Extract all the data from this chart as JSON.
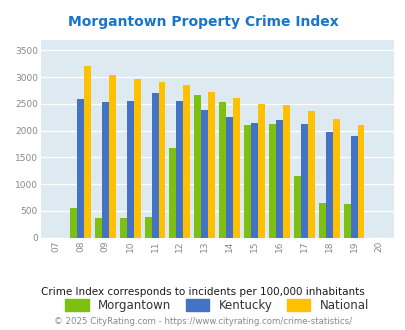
{
  "title": "Morgantown Property Crime Index",
  "years": [
    "07",
    "08",
    "09",
    "10",
    "11",
    "12",
    "13",
    "14",
    "15",
    "16",
    "17",
    "18",
    "19",
    "20"
  ],
  "morgantown": [
    0,
    550,
    375,
    370,
    390,
    1680,
    2670,
    2530,
    2100,
    2130,
    1160,
    650,
    625,
    0
  ],
  "kentucky": [
    0,
    2590,
    2540,
    2560,
    2700,
    2560,
    2380,
    2260,
    2150,
    2190,
    2130,
    1970,
    1900,
    0
  ],
  "national": [
    0,
    3200,
    3040,
    2960,
    2910,
    2860,
    2720,
    2600,
    2500,
    2480,
    2370,
    2210,
    2110,
    0
  ],
  "bar_colors": {
    "morgantown": "#7DC012",
    "kentucky": "#4472C4",
    "national": "#FFC000"
  },
  "ylabel_ticks": [
    0,
    500,
    1000,
    1500,
    2000,
    2500,
    3000,
    3500
  ],
  "ylim": [
    0,
    3700
  ],
  "bg_color": "#ddeaf2",
  "grid_color": "#ffffff",
  "subtitle": "Crime Index corresponds to incidents per 100,000 inhabitants",
  "footer": "© 2025 CityRating.com - https://www.cityrating.com/crime-statistics/",
  "title_color": "#1874CD",
  "subtitle_color": "#1a1a1a",
  "footer_color": "#888888",
  "legend_labels": [
    "Morgantown",
    "Kentucky",
    "National"
  ]
}
